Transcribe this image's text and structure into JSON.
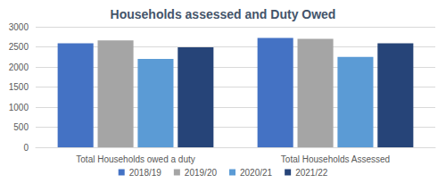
{
  "chart_data": {
    "type": "bar",
    "title": "Households assessed and Duty Owed",
    "categories": [
      "Total Households owed a duty",
      "Total Households Assessed"
    ],
    "series": [
      {
        "name": "2018/19",
        "color": "#4472c4",
        "values": [
          2590,
          2720
        ]
      },
      {
        "name": "2019/20",
        "color": "#a5a5a5",
        "values": [
          2660,
          2700
        ]
      },
      {
        "name": "2020/21",
        "color": "#5b9bd5",
        "values": [
          2200,
          2250
        ]
      },
      {
        "name": "2021/22",
        "color": "#264478",
        "values": [
          2490,
          2590
        ]
      }
    ],
    "ylim": [
      0,
      3000
    ],
    "yticks": [
      0,
      500,
      1000,
      1500,
      2000,
      2500,
      3000
    ],
    "grid": true,
    "legend": "bottom"
  }
}
